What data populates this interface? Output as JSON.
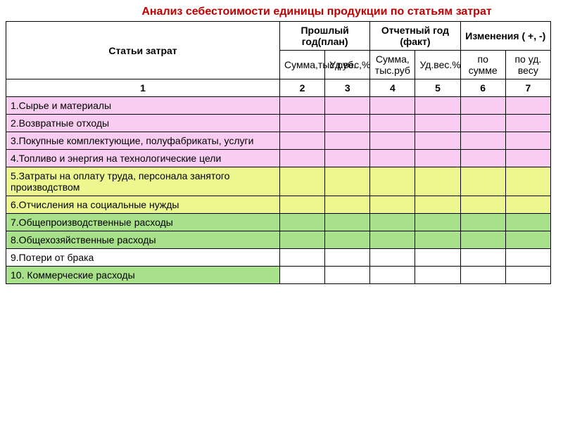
{
  "title": "Анализ себестоимости единицы продукции по статьям затрат",
  "header": {
    "col1": "Статьи затрат",
    "group1": "Прошлый год(план)",
    "group2": "Отчетный год (факт)",
    "group3": "Изменения ( +, -)",
    "sub": {
      "g1a": "Сумма,тыс.руб.",
      "g1b": "Уд.вес,%",
      "g2a": "Сумма, тыс.руб",
      "g2b": "Уд.вес.%",
      "g3a": "по сумме",
      "g3b": "по уд. весу"
    }
  },
  "numrow": {
    "c1": "1",
    "c2": "2",
    "c3": "3",
    "c4": "4",
    "c5": "5",
    "c6": "6",
    "c7": "7"
  },
  "rows": [
    {
      "label": "1.Сырье и материалы",
      "style": "pink"
    },
    {
      "label": "2.Возвратные отходы",
      "style": "pink"
    },
    {
      "label": "3.Покупные комплектующие, полуфабрикаты, услуги",
      "style": "pink"
    },
    {
      "label": "4.Топливо и энергия на технологические цели",
      "style": "pink"
    },
    {
      "label": "5.Затраты на оплату труда, персонала занятого производством",
      "style": "yellow"
    },
    {
      "label": "6.Отчисления на социальные нужды",
      "style": "yellow"
    },
    {
      "label": "7.Общепроизводственные расходы",
      "style": "green"
    },
    {
      "label": "8.Общехозяйственные расходы",
      "style": "green"
    },
    {
      "label": "9.Потери от брака",
      "style": "white"
    },
    {
      "label": "10. Коммерческие расходы",
      "style": "green-partial"
    }
  ],
  "colors": {
    "title": "#c00000",
    "pink": "#f9cdf1",
    "yellow": "#edf78f",
    "green": "#a9e18a",
    "border": "#000000",
    "background": "#ffffff"
  }
}
